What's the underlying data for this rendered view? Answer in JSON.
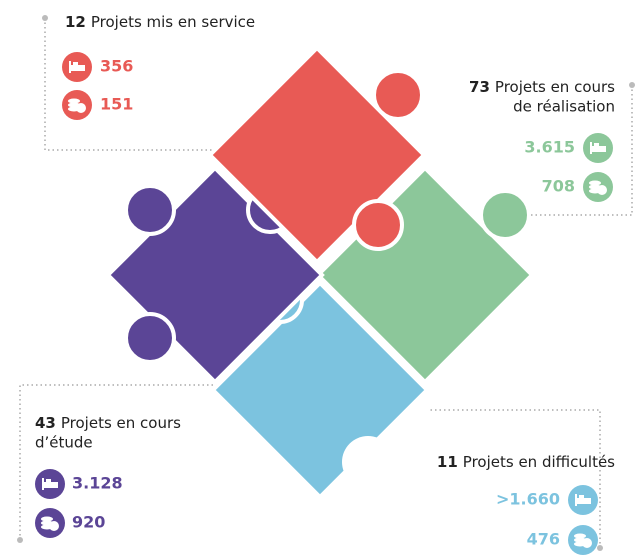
{
  "groups": [
    {
      "count": "12",
      "label": [
        "Projets mis en service"
      ],
      "beds": "356",
      "amount": "151"
    },
    {
      "count": "73",
      "label": [
        "Projets en cours",
        "de réalisation"
      ],
      "beds": "3.615",
      "amount": "708"
    },
    {
      "count": "43",
      "label": [
        "Projets en cours",
        "d’étude"
      ],
      "beds": "3.128",
      "amount": "920"
    },
    {
      "count": "11",
      "label": [
        "Projets en difficultés"
      ],
      "beds": ">1.660",
      "amount": "476"
    }
  ]
}
